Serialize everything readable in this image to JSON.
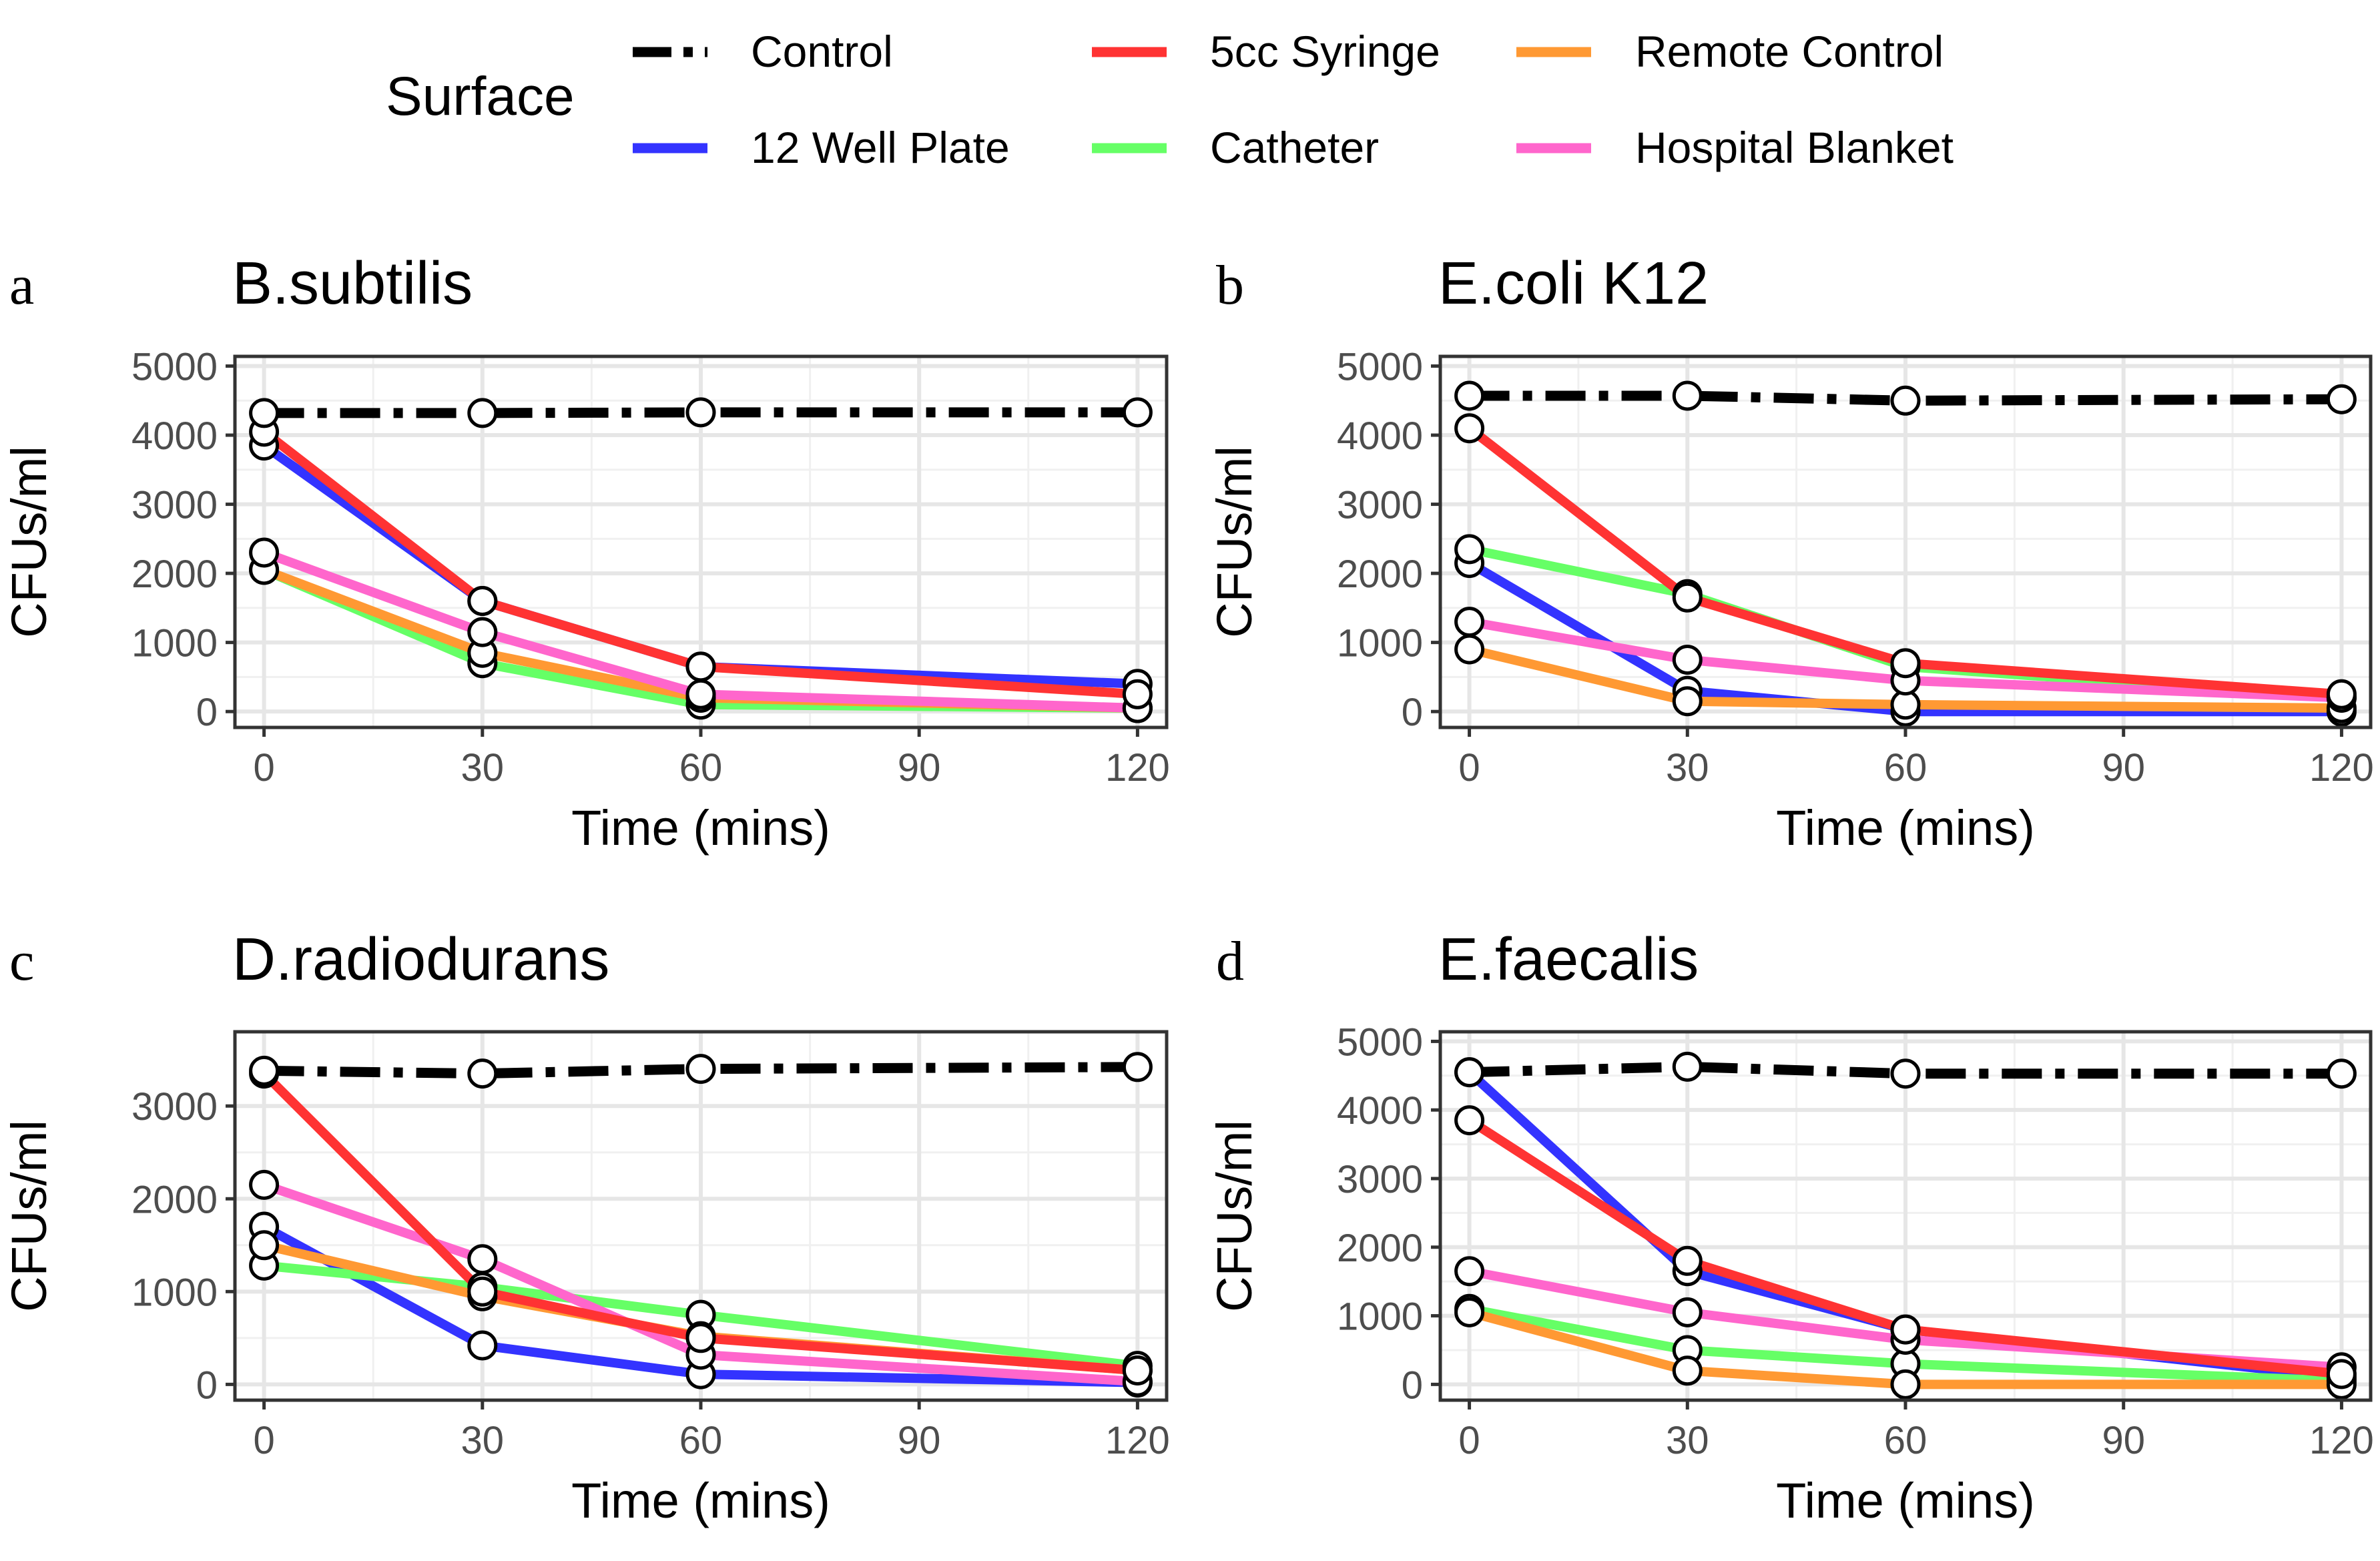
{
  "legend": {
    "title": "Surface",
    "entries": [
      {
        "key": "control",
        "label": "Control",
        "color": "#000000",
        "dashed": true
      },
      {
        "key": "syringe",
        "label": "5cc Syringe",
        "color": "#ff3333",
        "dashed": false
      },
      {
        "key": "remote",
        "label": "Remote Control",
        "color": "#ff9933",
        "dashed": false
      },
      {
        "key": "wellplate",
        "label": "12 Well Plate",
        "color": "#3333ff",
        "dashed": false
      },
      {
        "key": "catheter",
        "label": "Catheter",
        "color": "#66ff66",
        "dashed": false
      },
      {
        "key": "blanket",
        "label": "Hospital Blanket",
        "color": "#ff66cc",
        "dashed": false
      }
    ]
  },
  "chart_data": [
    {
      "panel": "a",
      "type": "line",
      "title": "B.subtilis",
      "xlabel": "Time (mins)",
      "ylabel": "CFUs/ml",
      "xlim": [
        -4,
        124
      ],
      "ylim": [
        -230,
        5140
      ],
      "xticks": [
        0,
        30,
        60,
        90,
        120
      ],
      "yticks": [
        0,
        1000,
        2000,
        3000,
        4000,
        5000
      ],
      "x": [
        0,
        30,
        60,
        120
      ],
      "series": [
        {
          "key": "wellplate",
          "name": "12 Well Plate",
          "values": [
            3850,
            1600,
            650,
            400
          ]
        },
        {
          "key": "catheter",
          "name": "Catheter",
          "values": [
            2050,
            700,
            100,
            50
          ]
        },
        {
          "key": "remote",
          "name": "Remote Control",
          "values": [
            2050,
            850,
            200,
            50
          ]
        },
        {
          "key": "blanket",
          "name": "Hospital Blanket",
          "values": [
            2300,
            1150,
            250,
            50
          ]
        },
        {
          "key": "syringe",
          "name": "5cc Syringe",
          "values": [
            4050,
            1600,
            650,
            250
          ]
        },
        {
          "key": "control",
          "name": "Control",
          "values": [
            4320,
            4320,
            4330,
            4330
          ]
        }
      ]
    },
    {
      "panel": "b",
      "type": "line",
      "title": "E.coli K12",
      "xlabel": "Time (mins)",
      "ylabel": "CFUs/ml",
      "xlim": [
        -4,
        124
      ],
      "ylim": [
        -230,
        5140
      ],
      "xticks": [
        0,
        30,
        60,
        90,
        120
      ],
      "yticks": [
        0,
        1000,
        2000,
        3000,
        4000,
        5000
      ],
      "x": [
        0,
        30,
        60,
        120
      ],
      "series": [
        {
          "key": "wellplate",
          "name": "12 Well Plate",
          "values": [
            2150,
            300,
            0,
            0
          ]
        },
        {
          "key": "catheter",
          "name": "Catheter",
          "values": [
            2350,
            1700,
            650,
            200
          ]
        },
        {
          "key": "remote",
          "name": "Remote Control",
          "values": [
            900,
            150,
            100,
            50
          ]
        },
        {
          "key": "blanket",
          "name": "Hospital Blanket",
          "values": [
            1300,
            750,
            450,
            200
          ]
        },
        {
          "key": "syringe",
          "name": "5cc Syringe",
          "values": [
            4100,
            1650,
            700,
            250
          ]
        },
        {
          "key": "control",
          "name": "Control",
          "values": [
            4570,
            4570,
            4500,
            4520
          ]
        }
      ]
    },
    {
      "panel": "c",
      "type": "line",
      "title": "D.radiodurans",
      "xlabel": "Time (mins)",
      "ylabel": "CFUs/ml",
      "xlim": [
        -4,
        124
      ],
      "ylim": [
        -170,
        3800
      ],
      "xticks": [
        0,
        30,
        60,
        90,
        120
      ],
      "yticks": [
        0,
        1000,
        2000,
        3000
      ],
      "x": [
        0,
        30,
        60,
        120
      ],
      "series": [
        {
          "key": "wellplate",
          "name": "12 Well Plate",
          "values": [
            1700,
            420,
            110,
            20
          ]
        },
        {
          "key": "catheter",
          "name": "Catheter",
          "values": [
            1280,
            1050,
            750,
            200
          ]
        },
        {
          "key": "remote",
          "name": "Remote Control",
          "values": [
            1500,
            950,
            520,
            150
          ]
        },
        {
          "key": "blanket",
          "name": "Hospital Blanket",
          "values": [
            2150,
            1350,
            320,
            30
          ]
        },
        {
          "key": "syringe",
          "name": "5cc Syringe",
          "values": [
            3350,
            1000,
            500,
            150
          ]
        },
        {
          "key": "control",
          "name": "Control",
          "values": [
            3380,
            3350,
            3400,
            3420
          ]
        }
      ]
    },
    {
      "panel": "d",
      "type": "line",
      "title": "E.faecalis",
      "xlabel": "Time (mins)",
      "ylabel": "CFUs/ml",
      "xlim": [
        -4,
        124
      ],
      "ylim": [
        -230,
        5140
      ],
      "xticks": [
        0,
        30,
        60,
        90,
        120
      ],
      "yticks": [
        0,
        1000,
        2000,
        3000,
        4000,
        5000
      ],
      "x": [
        0,
        30,
        60,
        120
      ],
      "series": [
        {
          "key": "wellplate",
          "name": "12 Well Plate",
          "values": [
            4550,
            1650,
            800,
            100
          ]
        },
        {
          "key": "catheter",
          "name": "Catheter",
          "values": [
            1100,
            500,
            300,
            50
          ]
        },
        {
          "key": "remote",
          "name": "Remote Control",
          "values": [
            1050,
            200,
            0,
            0
          ]
        },
        {
          "key": "blanket",
          "name": "Hospital Blanket",
          "values": [
            1650,
            1050,
            650,
            250
          ]
        },
        {
          "key": "syringe",
          "name": "5cc Syringe",
          "values": [
            3850,
            1800,
            800,
            150
          ]
        },
        {
          "key": "control",
          "name": "Control",
          "values": [
            4550,
            4630,
            4530,
            4530
          ]
        }
      ]
    }
  ]
}
